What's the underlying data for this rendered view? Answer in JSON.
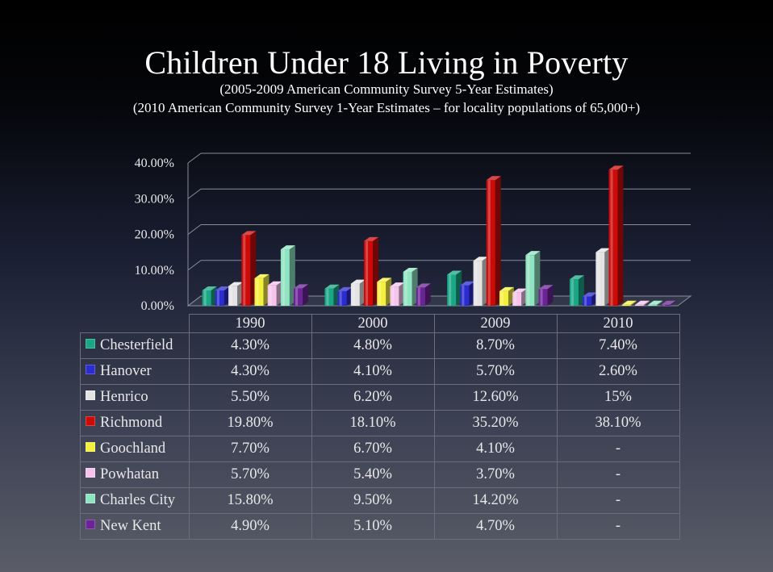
{
  "title": "Children Under 18 Living in Poverty",
  "subtitle1": "(2005-2009 American Community Survey 5-Year Estimates)",
  "subtitle2": "(2010 American Community Survey 1-Year Estimates – for locality populations of 65,000+)",
  "chart_data": {
    "type": "bar",
    "categories": [
      "1990",
      "2000",
      "2009",
      "2010"
    ],
    "ylim": [
      0,
      40
    ],
    "yticks": [
      "0.00%",
      "10.00%",
      "20.00%",
      "30.00%",
      "40.00%"
    ],
    "grid": true,
    "legend": "table",
    "series": [
      {
        "name": "Chesterfield",
        "color": "#1aa785",
        "values": [
          4.3,
          4.8,
          8.7,
          7.4
        ],
        "labels": [
          "4.30%",
          "4.80%",
          "8.70%",
          "7.40%"
        ]
      },
      {
        "name": "Hanover",
        "color": "#2b2bd0",
        "values": [
          4.3,
          4.1,
          5.7,
          2.6
        ],
        "labels": [
          "4.30%",
          "4.10%",
          "5.70%",
          "2.60%"
        ]
      },
      {
        "name": "Henrico",
        "color": "#e4e4e4",
        "values": [
          5.5,
          6.2,
          12.6,
          15
        ],
        "labels": [
          "5.50%",
          "6.20%",
          "12.60%",
          "15%"
        ]
      },
      {
        "name": "Richmond",
        "color": "#cc0a0a",
        "values": [
          19.8,
          18.1,
          35.2,
          38.1
        ],
        "labels": [
          "19.80%",
          "18.10%",
          "35.20%",
          "38.10%"
        ]
      },
      {
        "name": "Goochland",
        "color": "#f5f040",
        "values": [
          7.7,
          6.7,
          4.1,
          null
        ],
        "labels": [
          "7.70%",
          "6.70%",
          "4.10%",
          "-"
        ]
      },
      {
        "name": "Powhatan",
        "color": "#f5c4ec",
        "values": [
          5.7,
          5.4,
          3.7,
          null
        ],
        "labels": [
          "5.70%",
          "5.40%",
          "3.70%",
          "-"
        ]
      },
      {
        "name": "Charles City",
        "color": "#8fe4c2",
        "values": [
          15.8,
          9.5,
          14.2,
          null
        ],
        "labels": [
          "15.80%",
          "9.50%",
          "14.20%",
          "-"
        ]
      },
      {
        "name": "New Kent",
        "color": "#6b2496",
        "values": [
          4.9,
          5.1,
          4.7,
          null
        ],
        "labels": [
          "4.90%",
          "5.10%",
          "4.70%",
          "-"
        ]
      }
    ]
  }
}
